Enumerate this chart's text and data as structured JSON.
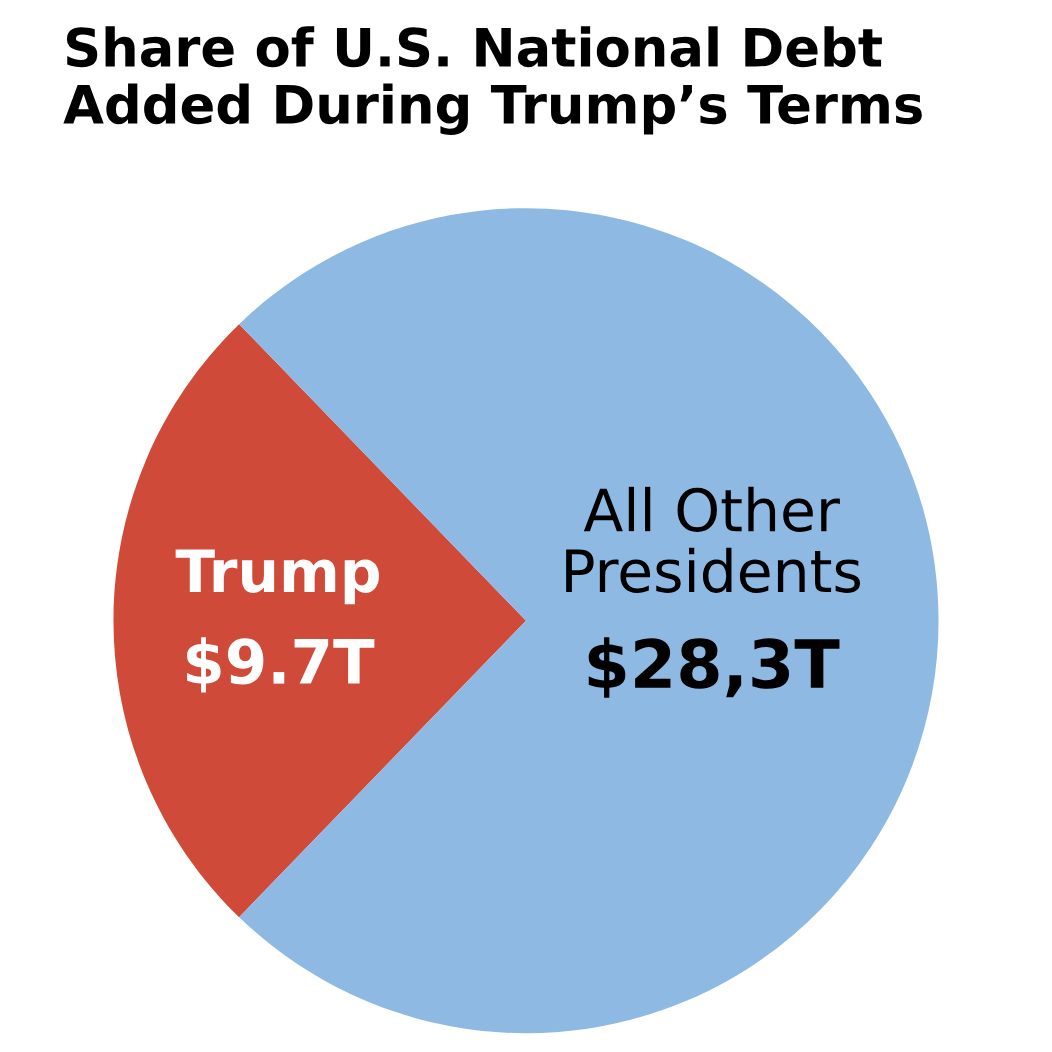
{
  "chart_data": {
    "type": "pie",
    "title": "Share of U.S. National Debt\nAdded During Trump’s Terms",
    "categories": [
      "Trump",
      "All Other\nPresidents"
    ],
    "values": [
      9.7,
      28.3
    ],
    "value_labels": [
      "$9.7T",
      "$28,3T"
    ],
    "colors": [
      "#d04a3a",
      "#8db9e2"
    ]
  }
}
